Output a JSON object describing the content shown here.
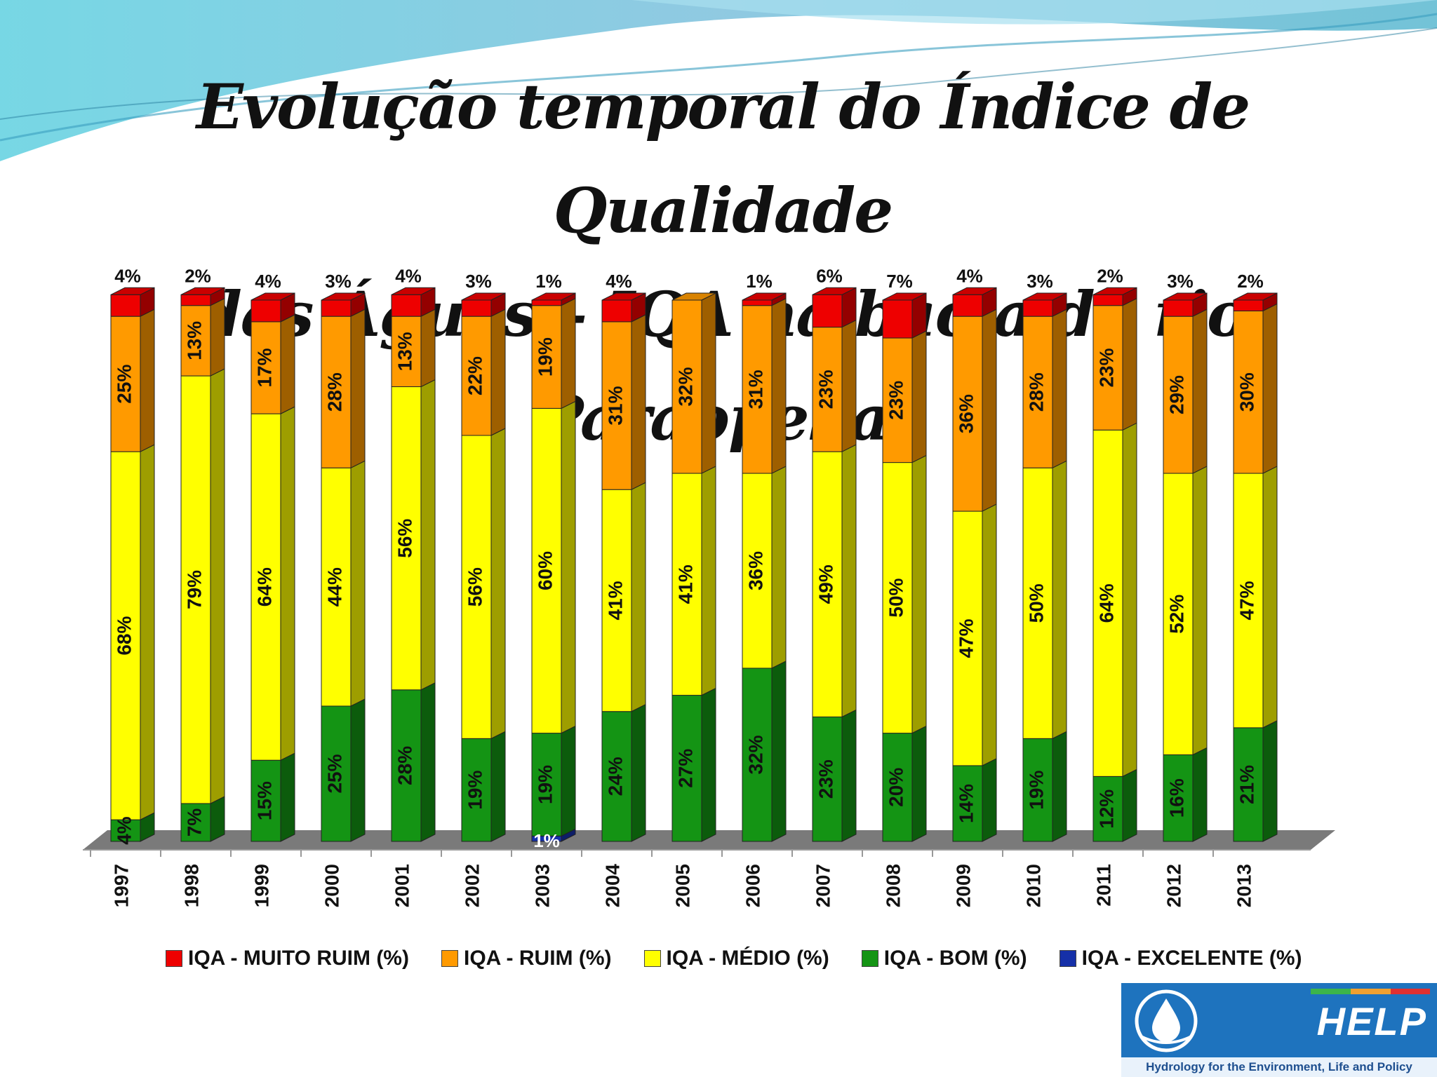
{
  "slide": {
    "title_line1": "Evolução temporal do Índice de Qualidade",
    "title_line2": "das Águas – IQA na bacia do rio Paraopeba."
  },
  "chart_data": {
    "type": "bar",
    "stacked": true,
    "three_d": true,
    "categories": [
      "1997",
      "1998",
      "1999",
      "2000",
      "2001",
      "2002",
      "2003",
      "2004",
      "2005",
      "2006",
      "2007",
      "2008",
      "2009",
      "2010",
      "2011",
      "2012",
      "2013"
    ],
    "series": [
      {
        "name": "IQA - EXCELENTE (%)",
        "color": "#1530a8",
        "values": [
          0,
          0,
          0,
          0,
          0,
          0,
          1,
          0,
          0,
          0,
          0,
          0,
          0,
          0,
          0,
          0,
          0
        ]
      },
      {
        "name": "IQA - BOM (%)",
        "color": "#149414",
        "values": [
          4,
          7,
          15,
          25,
          28,
          19,
          19,
          24,
          27,
          32,
          23,
          20,
          14,
          19,
          12,
          16,
          21
        ]
      },
      {
        "name": "IQA - MÉDIO (%)",
        "color": "#ffff00",
        "values": [
          68,
          79,
          64,
          44,
          56,
          56,
          60,
          41,
          41,
          36,
          49,
          50,
          47,
          50,
          64,
          52,
          47
        ]
      },
      {
        "name": "IQA - RUIM (%)",
        "color": "#ff9a00",
        "values": [
          25,
          13,
          17,
          28,
          13,
          22,
          19,
          31,
          32,
          31,
          23,
          23,
          36,
          28,
          23,
          29,
          30
        ]
      },
      {
        "name": "IQA - MUITO RUIM (%)",
        "color": "#ee0000",
        "values": [
          4,
          2,
          4,
          3,
          4,
          3,
          1,
          4,
          0,
          1,
          6,
          7,
          4,
          3,
          2,
          3,
          2
        ]
      }
    ],
    "legend_position": "bottom",
    "grid": false
  },
  "legend": {
    "items": [
      {
        "label": "IQA - MUITO RUIM (%)",
        "color": "#ee0000"
      },
      {
        "label": "IQA - RUIM (%)",
        "color": "#ff9a00"
      },
      {
        "label": "IQA - MÉDIO (%)",
        "color": "#ffff00"
      },
      {
        "label": "IQA - BOM (%)",
        "color": "#149414"
      },
      {
        "label": "IQA - EXCELENTE (%)",
        "color": "#1530a8"
      }
    ]
  },
  "logo": {
    "name": "HELP",
    "tagline": "Hydrology for the Environment, Life and Policy"
  }
}
